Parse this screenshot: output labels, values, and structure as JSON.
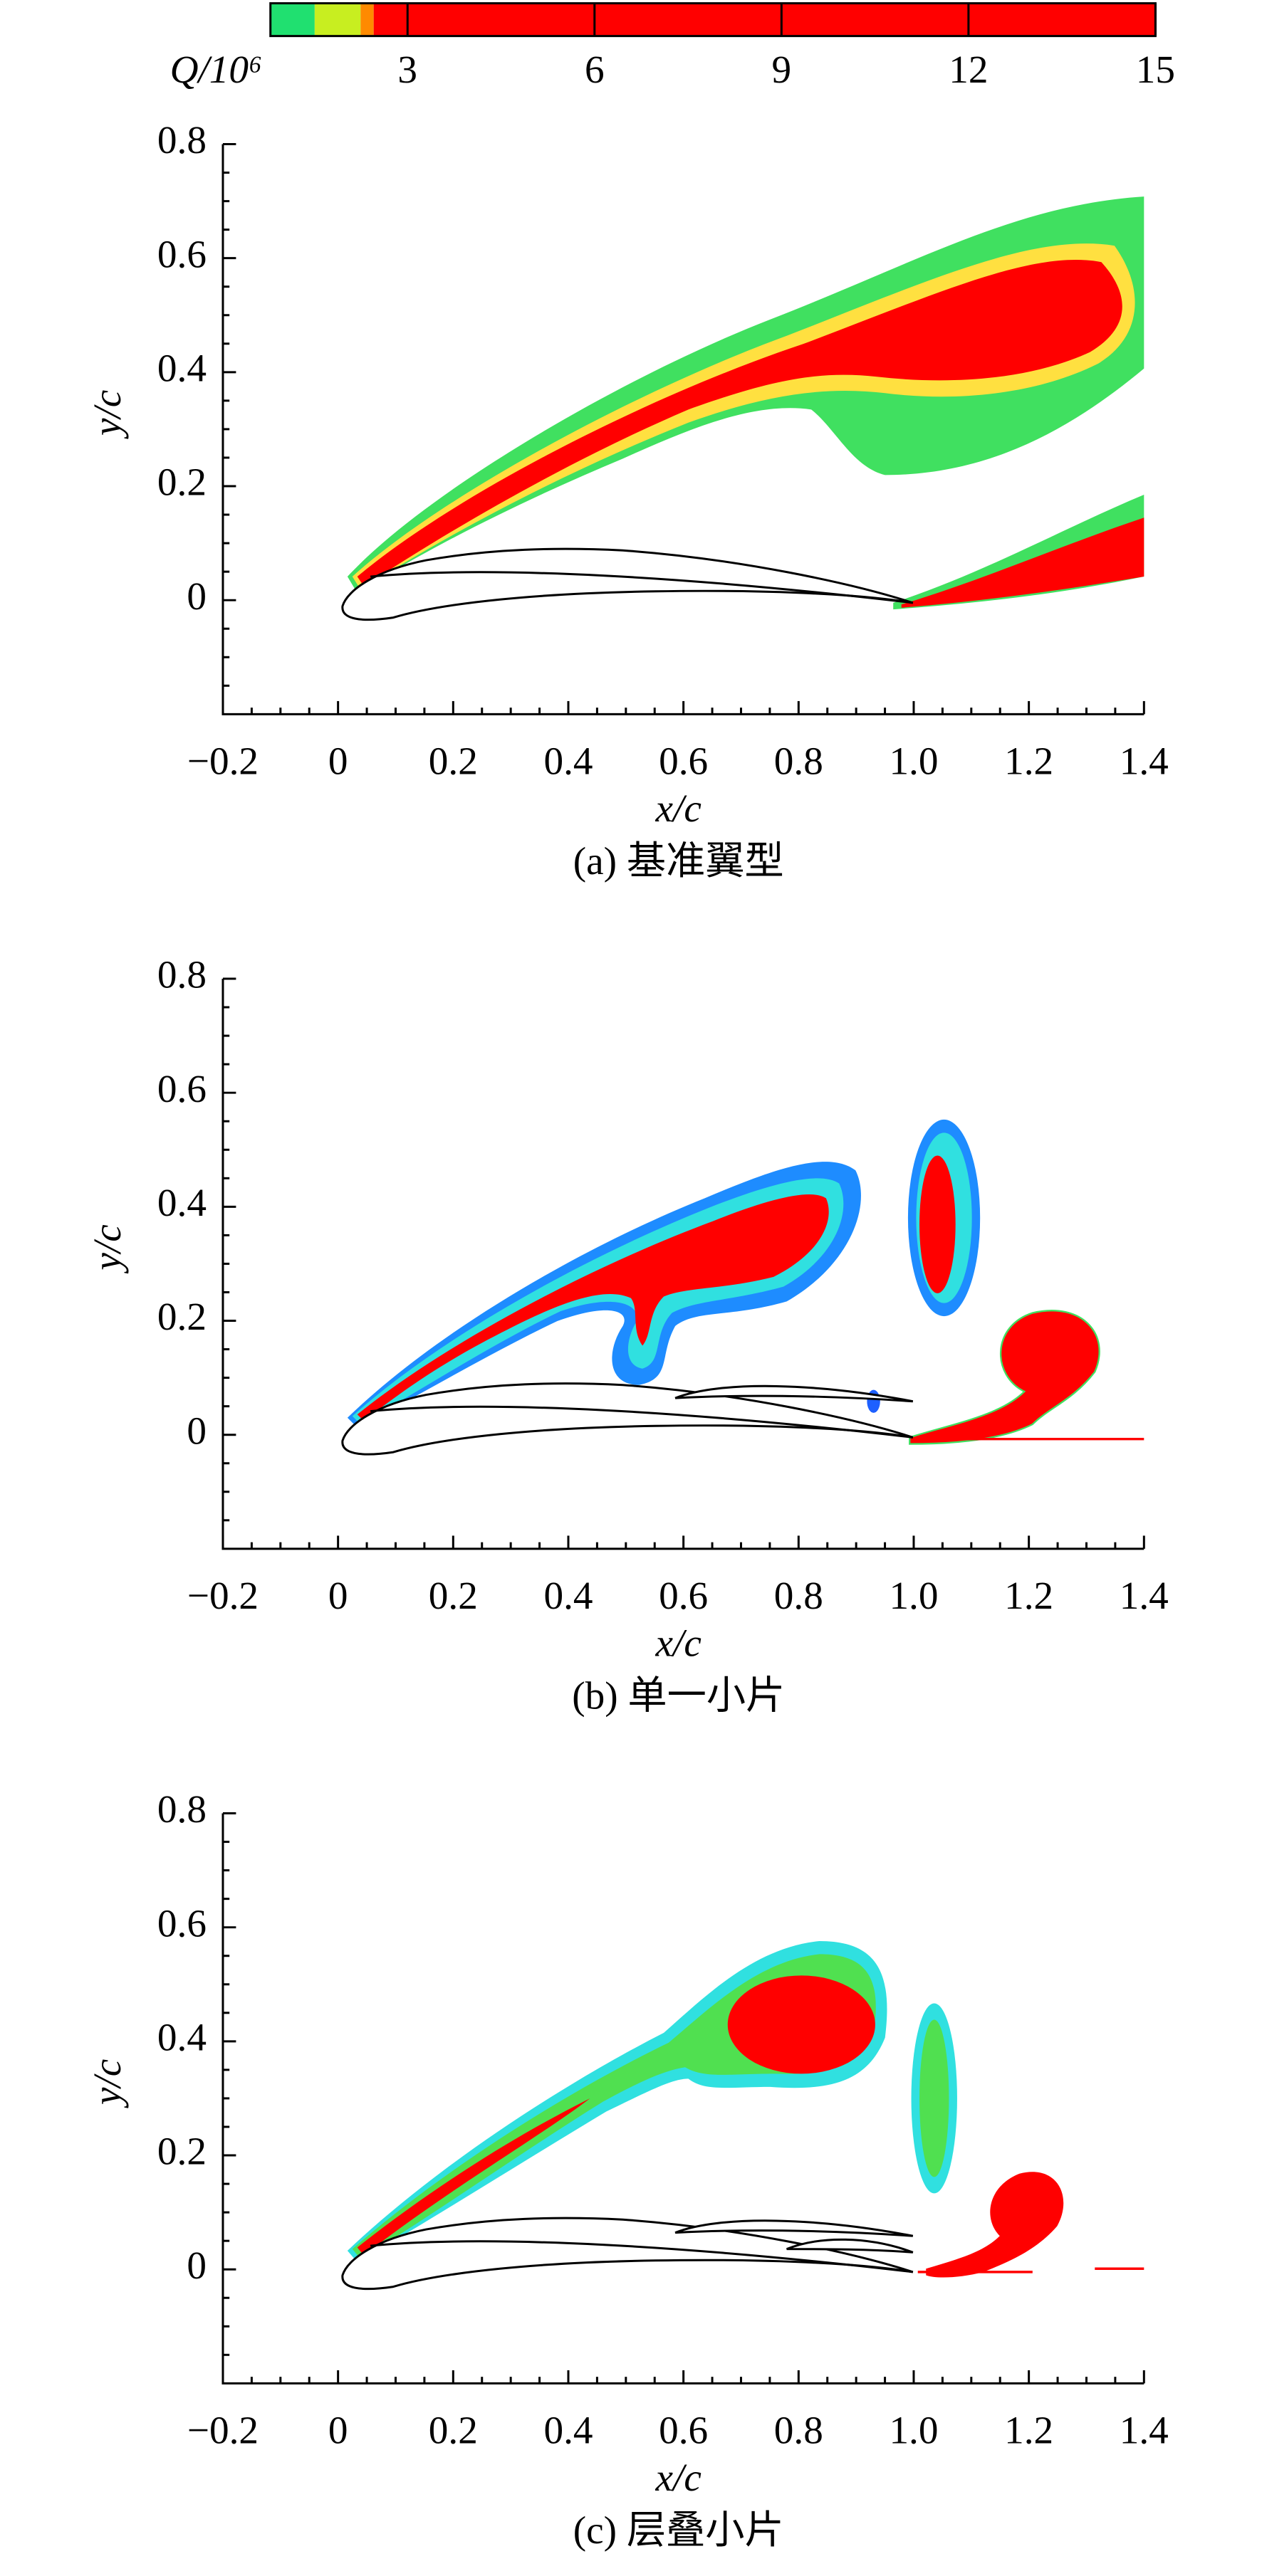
{
  "colorbar": {
    "label": "Q/10⁶",
    "lim": [
      0.8,
      15
    ],
    "ticks": [
      3,
      6,
      9,
      12,
      15
    ]
  },
  "chart_data": [
    {
      "type": "contour",
      "title": "(a) 基准翼型",
      "xlabel": "x/c",
      "ylabel": "y/c",
      "xlim": [
        -0.2,
        1.4
      ],
      "ylim": [
        -0.2,
        0.8
      ],
      "xticks": [
        {
          "value": -0.2,
          "label": "−0.2"
        },
        0,
        0.2,
        0.4,
        0.6,
        0.8,
        {
          "value": 1,
          "label": "1.0"
        },
        1.2,
        1.4
      ],
      "yticks": [
        0,
        0.2,
        0.4,
        0.6,
        0.8
      ]
    },
    {
      "type": "contour",
      "title": "(b) 单一小片",
      "xlabel": "x/c",
      "ylabel": "y/c",
      "xlim": [
        -0.2,
        1.4
      ],
      "ylim": [
        -0.2,
        0.8
      ],
      "xticks": [
        {
          "value": -0.2,
          "label": "−0.2"
        },
        0,
        0.2,
        0.4,
        0.6,
        0.8,
        {
          "value": 1,
          "label": "1.0"
        },
        1.2,
        1.4
      ],
      "yticks": [
        0,
        0.2,
        0.4,
        0.6,
        0.8
      ]
    },
    {
      "type": "contour",
      "title": "(c) 层叠小片",
      "xlabel": "x/c",
      "ylabel": "y/c",
      "xlim": [
        -0.2,
        1.4
      ],
      "ylim": [
        -0.2,
        0.8
      ],
      "xticks": [
        {
          "value": -0.2,
          "label": "−0.2"
        },
        0,
        0.2,
        0.4,
        0.6,
        0.8,
        {
          "value": 1,
          "label": "1.0"
        },
        1.2,
        1.4
      ],
      "yticks": [
        0,
        0.2,
        0.4,
        0.6,
        0.8
      ]
    }
  ]
}
